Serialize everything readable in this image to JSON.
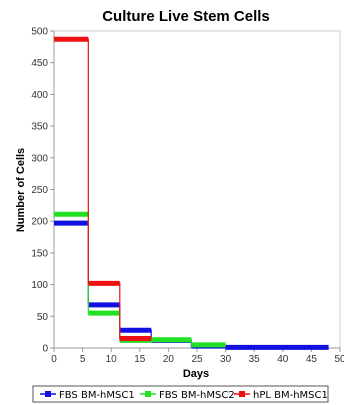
{
  "colors": {
    "series_1": "#1010e0",
    "series_2": "#22e022",
    "series_3": "#ee1111"
  },
  "chart_data": {
    "type": "line",
    "title": "Culture Live Stem Cells",
    "xlabel": "Days",
    "ylabel": "Number of Cells",
    "xlim": [
      0,
      50
    ],
    "ylim": [
      0,
      500
    ],
    "x_ticks": [
      "0",
      "5",
      "10",
      "15",
      "20",
      "25",
      "30",
      "35",
      "40",
      "45",
      "50"
    ],
    "y_ticks": [
      "0",
      "50",
      "100",
      "150",
      "200",
      "250",
      "300",
      "350",
      "400",
      "450",
      "500"
    ],
    "grid": false,
    "legend_position": "bottom",
    "step": true,
    "series": [
      {
        "name": "FBS BM-hMSC1",
        "color_key": "series_1",
        "points": [
          [
            0,
            197
          ],
          [
            6,
            197
          ],
          [
            6,
            68
          ],
          [
            11.5,
            68
          ],
          [
            11.5,
            28
          ],
          [
            17,
            28
          ],
          [
            17,
            12
          ],
          [
            24,
            12
          ],
          [
            24,
            3
          ],
          [
            30,
            3
          ],
          [
            30,
            1
          ],
          [
            48,
            1
          ]
        ]
      },
      {
        "name": "FBS BM-hMSC2",
        "color_key": "series_2",
        "points": [
          [
            0,
            211
          ],
          [
            6,
            211
          ],
          [
            6,
            55
          ],
          [
            11.5,
            55
          ],
          [
            11.5,
            12
          ],
          [
            17,
            12
          ],
          [
            17,
            13
          ],
          [
            24,
            13
          ],
          [
            24,
            5
          ],
          [
            30,
            5
          ]
        ]
      },
      {
        "name": "hPL BM-hMSC1",
        "color_key": "series_3",
        "points": [
          [
            0,
            487
          ],
          [
            6,
            487
          ],
          [
            6,
            102
          ],
          [
            11.5,
            102
          ],
          [
            11.5,
            15
          ],
          [
            17,
            15
          ]
        ]
      }
    ]
  }
}
